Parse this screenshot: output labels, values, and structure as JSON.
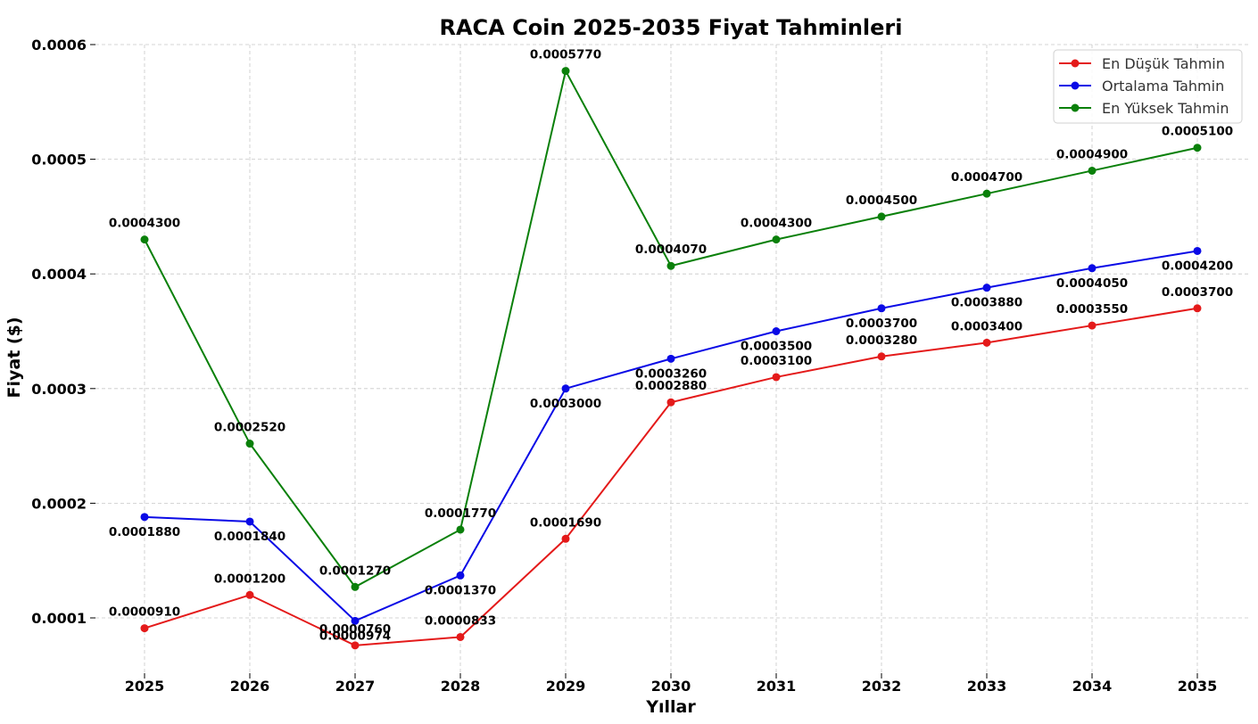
{
  "chart_data": {
    "type": "line",
    "title": "RACA Coin 2025-2035 Fiyat Tahminleri",
    "xlabel": "Yıllar",
    "ylabel": "Fiyat ($)",
    "x": [
      2025,
      2026,
      2027,
      2028,
      2029,
      2030,
      2031,
      2032,
      2033,
      2034,
      2035
    ],
    "xticks": [
      "2025",
      "2026",
      "2027",
      "2028",
      "2029",
      "2030",
      "2031",
      "2032",
      "2033",
      "2034",
      "2035"
    ],
    "yticks": [
      "0.0001",
      "0.0002",
      "0.0003",
      "0.0004",
      "0.0005",
      "0.0006"
    ],
    "ylim": [
      5e-05,
      0.0006
    ],
    "grid": true,
    "legend_position": "top-right",
    "series": [
      {
        "name": "En Düşük Tahmin",
        "color": "#e41a1a",
        "values": [
          9.1e-05,
          0.00012,
          7.6e-05,
          8.33e-05,
          0.000169,
          0.000288,
          0.00031,
          0.000328,
          0.00034,
          0.000355,
          0.00037
        ],
        "labels": [
          "0.0000910",
          "0.0001200",
          "0.0000760",
          "0.0000833",
          "0.0001690",
          "0.0002880",
          "0.0003100",
          "0.0003280",
          "0.0003400",
          "0.0003550",
          "0.0003700"
        ],
        "label_pos": [
          "above",
          "above",
          "above",
          "above",
          "above",
          "above",
          "above",
          "above",
          "above",
          "above",
          "above"
        ]
      },
      {
        "name": "Ortalama Tahmin",
        "color": "#0a0ae6",
        "values": [
          0.000188,
          0.000184,
          9.74e-05,
          0.000137,
          0.0003,
          0.000326,
          0.00035,
          0.00037,
          0.000388,
          0.000405,
          0.00042
        ],
        "labels": [
          "0.0001880",
          "0.0001840",
          "0.0000974",
          "0.0001370",
          "0.0003000",
          "0.0003260",
          "0.0003500",
          "0.0003700",
          "0.0003880",
          "0.0004050",
          "0.0004200"
        ],
        "label_pos": [
          "below",
          "below",
          "below",
          "below",
          "below",
          "below",
          "below",
          "below",
          "below",
          "below",
          "below"
        ]
      },
      {
        "name": "En Yüksek Tahmin",
        "color": "#0a800a",
        "values": [
          0.00043,
          0.000252,
          0.000127,
          0.000177,
          0.000577,
          0.000407,
          0.00043,
          0.00045,
          0.00047,
          0.00049,
          0.00051
        ],
        "labels": [
          "0.0004300",
          "0.0002520",
          "0.0001270",
          "0.0001770",
          "0.0005770",
          "0.0004070",
          "0.0004300",
          "0.0004500",
          "0.0004700",
          "0.0004900",
          "0.0005100"
        ],
        "label_pos": [
          "above",
          "above",
          "above",
          "above",
          "above",
          "above",
          "above",
          "above",
          "above",
          "above",
          "above"
        ]
      }
    ]
  }
}
